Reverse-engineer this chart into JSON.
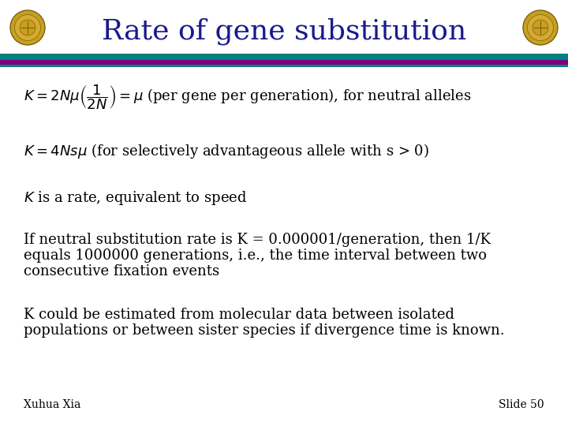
{
  "title": "Rate of gene substitution",
  "title_color": "#1a1a8c",
  "title_fontsize": 26,
  "bg_color": "#ffffff",
  "teal_color": "#008080",
  "purple_color": "#800080",
  "author": "Xuhua Xia",
  "slide_num": "Slide 50",
  "text_color": "#000000",
  "formula_fontsize": 13,
  "author_fontsize": 10
}
